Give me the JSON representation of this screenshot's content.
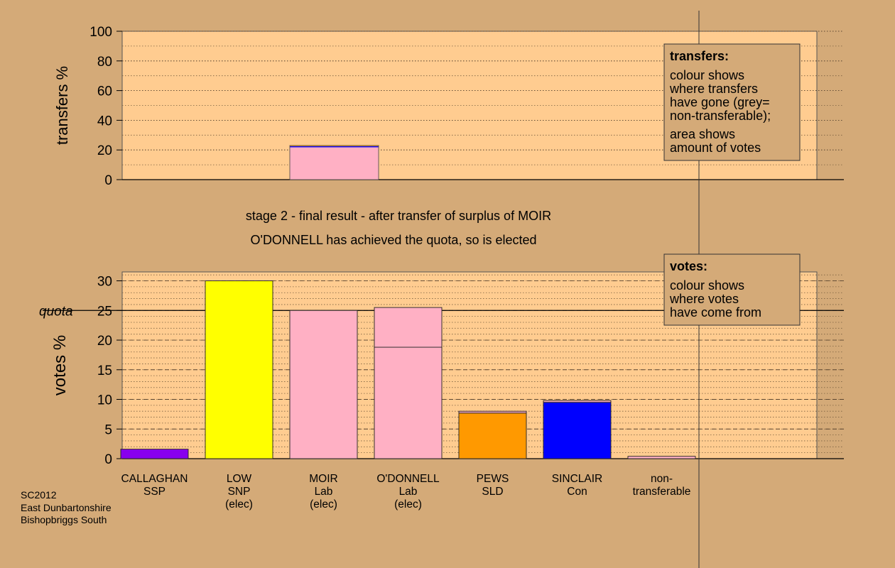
{
  "colors": {
    "background": "#d4aa78",
    "plot_area": "#ffcc90",
    "gridline": "#7a6040",
    "CALLAGHAN": "#8800ee",
    "LOW": "#ffff00",
    "MOIR": "#ffb0c4",
    "O'DONNELL": "#ffb0c4",
    "PEWS": "#ff9900",
    "SINCLAIR": "#0000ff",
    "non-transferable": "#ffb0c4"
  },
  "headings": {
    "stage": "stage 2 - final result - after transfer of surplus of MOIR",
    "status": "O'DONNELL has achieved the quota, so is elected"
  },
  "footer": [
    "SC2012",
    "East Dunbartonshire",
    "Bishopbriggs South"
  ],
  "legend_transfers": {
    "title": "transfers:",
    "lines": [
      "colour shows",
      "where transfers",
      "have gone (grey=",
      "non-transferable);"
    ],
    "lines2": [
      "area shows",
      "amount of votes"
    ]
  },
  "legend_votes": {
    "title": "votes:",
    "lines": [
      "colour shows",
      "where votes",
      "have come from"
    ]
  },
  "chart_data": [
    {
      "type": "bar",
      "ylabel": "transfers %",
      "ylim": [
        0,
        100
      ],
      "yticks": [
        0,
        20,
        40,
        60,
        80,
        100
      ],
      "categories": [
        "CALLAGHAN",
        "LOW",
        "MOIR",
        "O'DONNELL",
        "PEWS",
        "SINCLAIR",
        "non-transferable"
      ],
      "bars": [
        {
          "category": "MOIR",
          "segments": [
            {
              "from": "O'DONNELL",
              "value": 21.8
            },
            {
              "from": "SINCLAIR",
              "value": 0.7
            },
            {
              "from": "PEWS",
              "value": 0.5
            }
          ]
        }
      ]
    },
    {
      "type": "bar",
      "ylabel": "votes %",
      "ylim": [
        0,
        31.5
      ],
      "yticks": [
        0,
        5,
        10,
        15,
        20,
        25,
        30
      ],
      "quota": 25,
      "quota_label": "quota",
      "categories": [
        "CALLAGHAN",
        "LOW",
        "MOIR",
        "O'DONNELL",
        "PEWS",
        "SINCLAIR",
        "non-transferable"
      ],
      "bars": [
        {
          "category": "CALLAGHAN",
          "labels": [
            "CALLAGHAN",
            "SSP"
          ],
          "segments": [
            {
              "from": "CALLAGHAN",
              "value": 1.6
            }
          ]
        },
        {
          "category": "LOW",
          "labels": [
            "LOW",
            "SNP",
            "(elec)"
          ],
          "segments": [
            {
              "from": "LOW",
              "value": 30.0
            }
          ]
        },
        {
          "category": "MOIR",
          "labels": [
            "MOIR",
            "Lab",
            "(elec)"
          ],
          "segments": [
            {
              "from": "MOIR",
              "value": 25.0
            }
          ]
        },
        {
          "category": "O'DONNELL",
          "labels": [
            "O'DONNELL",
            "Lab",
            "(elec)"
          ],
          "segments": [
            {
              "from": "O'DONNELL",
              "value": 18.8
            },
            {
              "from": "MOIR",
              "value": 6.7
            }
          ]
        },
        {
          "category": "PEWS",
          "labels": [
            "PEWS",
            "SLD"
          ],
          "segments": [
            {
              "from": "PEWS",
              "value": 7.7
            },
            {
              "from": "MOIR",
              "value": 0.3
            }
          ]
        },
        {
          "category": "SINCLAIR",
          "labels": [
            "SINCLAIR",
            "Con"
          ],
          "segments": [
            {
              "from": "SINCLAIR",
              "value": 9.5
            },
            {
              "from": "MOIR",
              "value": 0.3
            }
          ]
        },
        {
          "category": "non-transferable",
          "labels": [
            "non-",
            "transferable"
          ],
          "segments": [
            {
              "from": "MOIR",
              "value": 0.4
            }
          ]
        }
      ]
    }
  ]
}
